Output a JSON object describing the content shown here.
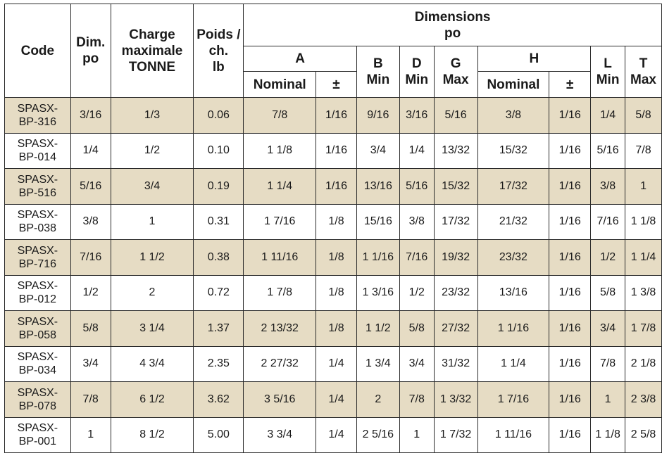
{
  "table": {
    "headers": {
      "code": "Code",
      "dim_line1": "Dim.",
      "dim_line2": "po",
      "charge_line1": "Charge",
      "charge_line2": "maximale",
      "charge_line3": "TONNE",
      "poids_line1": "Poids /",
      "poids_line2": "ch.",
      "poids_line3": "lb",
      "dimensions_line1": "Dimensions",
      "dimensions_line2": "po",
      "a": "A",
      "b_line1": "B",
      "b_line2": "Min",
      "d_line1": "D",
      "d_line2": "Min",
      "g_line1": "G",
      "g_line2": "Max",
      "h": "H",
      "l_line1": "L",
      "l_line2": "Min",
      "t_line1": "T",
      "t_line2": "Max",
      "a_nominal": "Nominal",
      "a_tol": "±",
      "h_nominal": "Nominal",
      "h_tol": "±"
    },
    "rows": [
      {
        "code1": "SPASX-",
        "code2": "BP-316",
        "dim": "3/16",
        "charge": "1/3",
        "poids": "0.06",
        "a_nom": "7/8",
        "a_tol": "1/16",
        "b": "9/16",
        "d": "3/16",
        "g": "5/16",
        "h_nom": "3/8",
        "h_tol": "1/16",
        "l": "1/4",
        "t": "5/8"
      },
      {
        "code1": "SPASX-",
        "code2": "BP-014",
        "dim": "1/4",
        "charge": "1/2",
        "poids": "0.10",
        "a_nom": "1 1/8",
        "a_tol": "1/16",
        "b": "3/4",
        "d": "1/4",
        "g": "13/32",
        "h_nom": "15/32",
        "h_tol": "1/16",
        "l": "5/16",
        "t": "7/8"
      },
      {
        "code1": "SPASX-",
        "code2": "BP-516",
        "dim": "5/16",
        "charge": "3/4",
        "poids": "0.19",
        "a_nom": "1 1/4",
        "a_tol": "1/16",
        "b": "13/16",
        "d": "5/16",
        "g": "15/32",
        "h_nom": "17/32",
        "h_tol": "1/16",
        "l": "3/8",
        "t": "1"
      },
      {
        "code1": "SPASX-",
        "code2": "BP-038",
        "dim": "3/8",
        "charge": "1",
        "poids": "0.31",
        "a_nom": "1 7/16",
        "a_tol": "1/8",
        "b": "15/16",
        "d": "3/8",
        "g": "17/32",
        "h_nom": "21/32",
        "h_tol": "1/16",
        "l": "7/16",
        "t": "1 1/8"
      },
      {
        "code1": "SPASX-",
        "code2": "BP-716",
        "dim": "7/16",
        "charge": "1 1/2",
        "poids": "0.38",
        "a_nom": "1 11/16",
        "a_tol": "1/8",
        "b": "1 1/16",
        "d": "7/16",
        "g": "19/32",
        "h_nom": "23/32",
        "h_tol": "1/16",
        "l": "1/2",
        "t": "1 1/4"
      },
      {
        "code1": "SPASX-",
        "code2": "BP-012",
        "dim": "1/2",
        "charge": "2",
        "poids": "0.72",
        "a_nom": "1 7/8",
        "a_tol": "1/8",
        "b": "1 3/16",
        "d": "1/2",
        "g": "23/32",
        "h_nom": "13/16",
        "h_tol": "1/16",
        "l": "5/8",
        "t": "1 3/8"
      },
      {
        "code1": "SPASX-",
        "code2": "BP-058",
        "dim": "5/8",
        "charge": "3 1/4",
        "poids": "1.37",
        "a_nom": "2 13/32",
        "a_tol": "1/8",
        "b": "1 1/2",
        "d": "5/8",
        "g": "27/32",
        "h_nom": "1 1/16",
        "h_tol": "1/16",
        "l": "3/4",
        "t": "1 7/8"
      },
      {
        "code1": "SPASX-",
        "code2": "BP-034",
        "dim": "3/4",
        "charge": "4 3/4",
        "poids": "2.35",
        "a_nom": "2 27/32",
        "a_tol": "1/4",
        "b": "1 3/4",
        "d": "3/4",
        "g": "31/32",
        "h_nom": "1 1/4",
        "h_tol": "1/16",
        "l": "7/8",
        "t": "2 1/8"
      },
      {
        "code1": "SPASX-",
        "code2": "BP-078",
        "dim": "7/8",
        "charge": "6 1/2",
        "poids": "3.62",
        "a_nom": "3 5/16",
        "a_tol": "1/4",
        "b": "2",
        "d": "7/8",
        "g": "1 3/32",
        "h_nom": "1 7/16",
        "h_tol": "1/16",
        "l": "1",
        "t": "2 3/8"
      },
      {
        "code1": "SPASX-",
        "code2": "BP-001",
        "dim": "1",
        "charge": "8 1/2",
        "poids": "5.00",
        "a_nom": "3 3/4",
        "a_tol": "1/4",
        "b": "2 5/16",
        "d": "1",
        "g": "1 7/32",
        "h_nom": "1 11/16",
        "h_tol": "1/16",
        "l": "1 1/8",
        "t": "2 5/8"
      }
    ]
  },
  "colors": {
    "shaded_row": "#e6dcc4",
    "plain_row": "#ffffff",
    "border": "#2a2a2a"
  }
}
